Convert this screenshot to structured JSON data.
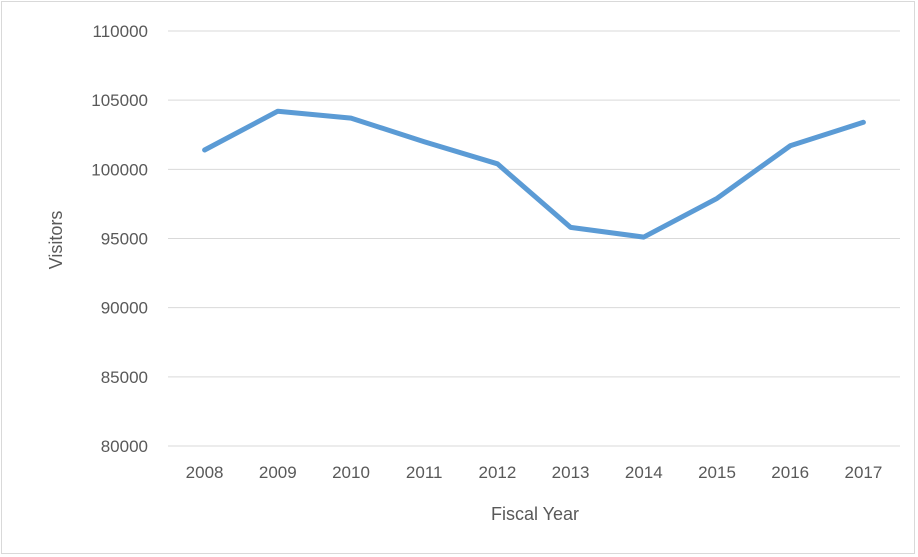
{
  "chart_data": {
    "type": "line",
    "title": "",
    "xlabel": "Fiscal Year",
    "ylabel": "Visitors",
    "categories": [
      "2008",
      "2009",
      "2010",
      "2011",
      "2012",
      "2013",
      "2014",
      "2015",
      "2016",
      "2017"
    ],
    "series": [
      {
        "values": [
          101400,
          104200,
          103700,
          102000,
          100400,
          95800,
          95100,
          97900,
          101700,
          103400
        ],
        "color": "#5b9bd5"
      }
    ],
    "ylim": [
      80000,
      110000
    ],
    "yticks": [
      "80000",
      "85000",
      "90000",
      "95000",
      "100000",
      "105000",
      "110000"
    ],
    "grid": true,
    "legend": "none"
  }
}
